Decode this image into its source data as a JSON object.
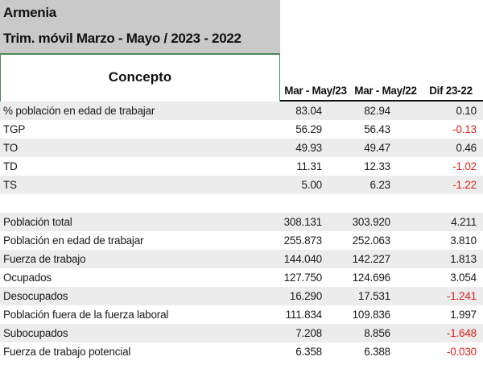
{
  "title": {
    "line1": "Armenia",
    "line2": "Trim. móvil Marzo - Mayo / 2023 - 2022"
  },
  "header": {
    "concepto": "Concepto",
    "col1": "Mar - May/23",
    "col2": "Mar - May/22",
    "col3": "Dif 23-22"
  },
  "colors": {
    "negative": "#e0201a",
    "title_bg": "#c9c9c9",
    "row_shade": "#ececec",
    "rule": "#4a8a5a"
  },
  "rows": [
    {
      "label": "% población en edad de trabajar",
      "v1": "83.04",
      "v2": "82.94",
      "v3": "0.10",
      "neg": false
    },
    {
      "label": "TGP",
      "v1": "56.29",
      "v2": "56.43",
      "v3": "-0.13",
      "neg": true
    },
    {
      "label": "TO",
      "v1": "49.93",
      "v2": "49.47",
      "v3": "0.46",
      "neg": false
    },
    {
      "label": "TD",
      "v1": "11.31",
      "v2": "12.33",
      "v3": "-1.02",
      "neg": true
    },
    {
      "label": "TS",
      "v1": "5.00",
      "v2": "6.23",
      "v3": "-1.22",
      "neg": true
    },
    {
      "label": "",
      "v1": "",
      "v2": "",
      "v3": "",
      "neg": false
    },
    {
      "label": "Población total",
      "v1": "308.131",
      "v2": "303.920",
      "v3": "4.211",
      "neg": false
    },
    {
      "label": "Población en edad de trabajar",
      "v1": "255.873",
      "v2": "252.063",
      "v3": "3.810",
      "neg": false
    },
    {
      "label": "Fuerza de trabajo",
      "v1": "144.040",
      "v2": "142.227",
      "v3": "1.813",
      "neg": false
    },
    {
      "label": "Ocupados",
      "v1": "127.750",
      "v2": "124.696",
      "v3": "3.054",
      "neg": false
    },
    {
      "label": "Desocupados",
      "v1": "16.290",
      "v2": "17.531",
      "v3": "-1.241",
      "neg": true
    },
    {
      "label": "Población fuera de la fuerza laboral",
      "v1": "111.834",
      "v2": "109.836",
      "v3": "1.997",
      "neg": false
    },
    {
      "label": "Subocupados",
      "v1": "7.208",
      "v2": "8.856",
      "v3": "-1.648",
      "neg": true
    },
    {
      "label": "Fuerza de trabajo potencial",
      "v1": "6.358",
      "v2": "6.388",
      "v3": "-0.030",
      "neg": true
    }
  ]
}
